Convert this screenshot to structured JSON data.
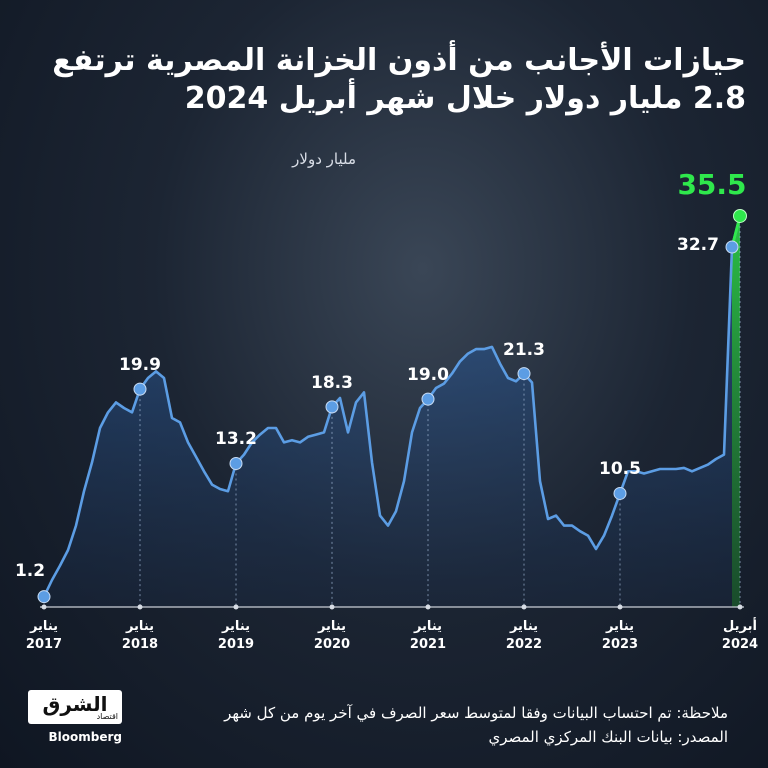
{
  "chart_data": {
    "type": "line",
    "title": "حيازات الأجانب من أذون الخزانة المصرية ترتفع 2.8 مليار دولار خلال شهر أبريل 2024",
    "y_label": "مليار دولار",
    "series": [
      {
        "name": "حيازات الأجانب",
        "color": "#5c9de4",
        "highlight_color": "#2fe84c",
        "values": [
          1.2,
          2.7,
          4.0,
          5.4,
          7.6,
          10.7,
          13.3,
          16.4,
          17.8,
          18.7,
          18.2,
          17.8,
          19.9,
          20.9,
          21.5,
          20.9,
          17.3,
          16.9,
          15.1,
          13.8,
          12.5,
          11.3,
          10.9,
          10.7,
          13.2,
          14.0,
          15.1,
          15.8,
          16.4,
          16.4,
          15.1,
          15.3,
          15.1,
          15.6,
          15.8,
          16.0,
          18.3,
          19.1,
          16.0,
          18.7,
          19.6,
          13.3,
          8.5,
          7.6,
          8.9,
          11.6,
          16.0,
          18.2,
          19.0,
          20.0,
          20.4,
          21.3,
          22.4,
          23.1,
          23.5,
          23.5,
          23.7,
          22.2,
          20.9,
          20.6,
          21.3,
          20.5,
          11.6,
          8.2,
          8.5,
          7.6,
          7.6,
          7.1,
          6.7,
          5.5,
          6.7,
          8.5,
          10.5,
          12.5,
          12.5,
          12.3,
          12.5,
          12.7,
          12.7,
          12.7,
          12.8,
          12.5,
          12.8,
          13.1,
          13.6,
          14.0,
          32.7,
          35.5
        ],
        "value_labels": [
          "1.2",
          null,
          null,
          null,
          null,
          null,
          null,
          null,
          null,
          null,
          null,
          null,
          "19.9",
          null,
          null,
          null,
          null,
          null,
          null,
          null,
          null,
          null,
          null,
          null,
          "13.2",
          null,
          null,
          null,
          null,
          null,
          null,
          null,
          null,
          null,
          null,
          null,
          "18.3",
          null,
          null,
          null,
          null,
          null,
          null,
          null,
          null,
          null,
          null,
          null,
          "19.0",
          null,
          null,
          null,
          null,
          null,
          null,
          null,
          null,
          null,
          null,
          null,
          "21.3",
          null,
          null,
          null,
          null,
          null,
          null,
          null,
          null,
          null,
          null,
          null,
          "10.5",
          null,
          null,
          null,
          null,
          null,
          null,
          null,
          null,
          null,
          null,
          null,
          null,
          null,
          "32.7",
          "35.5"
        ]
      }
    ],
    "xlim": [
      0,
      87
    ],
    "xticks": [
      {
        "value": 0,
        "label": "يناير 2017"
      },
      {
        "value": 12,
        "label": "يناير 2018"
      },
      {
        "value": 24,
        "label": "يناير 2019"
      },
      {
        "value": 36,
        "label": "يناير 2020"
      },
      {
        "value": 48,
        "label": "يناير 2021"
      },
      {
        "value": 60,
        "label": "يناير 2022"
      },
      {
        "value": 72,
        "label": "يناير 2023"
      },
      {
        "value": 87,
        "label": "أبريل 2024"
      }
    ],
    "ylim": [
      0,
      40
    ],
    "note": "ملاحظة: تم احتساب البيانات وفقا لمتوسط سعر الصرف في آخر يوم من كل شهر",
    "source": "المصدر: بيانات البنك المركزي المصري",
    "logo": {
      "name": "الشرق",
      "sub": "اقتصاد",
      "partner": "Bloomberg"
    }
  }
}
